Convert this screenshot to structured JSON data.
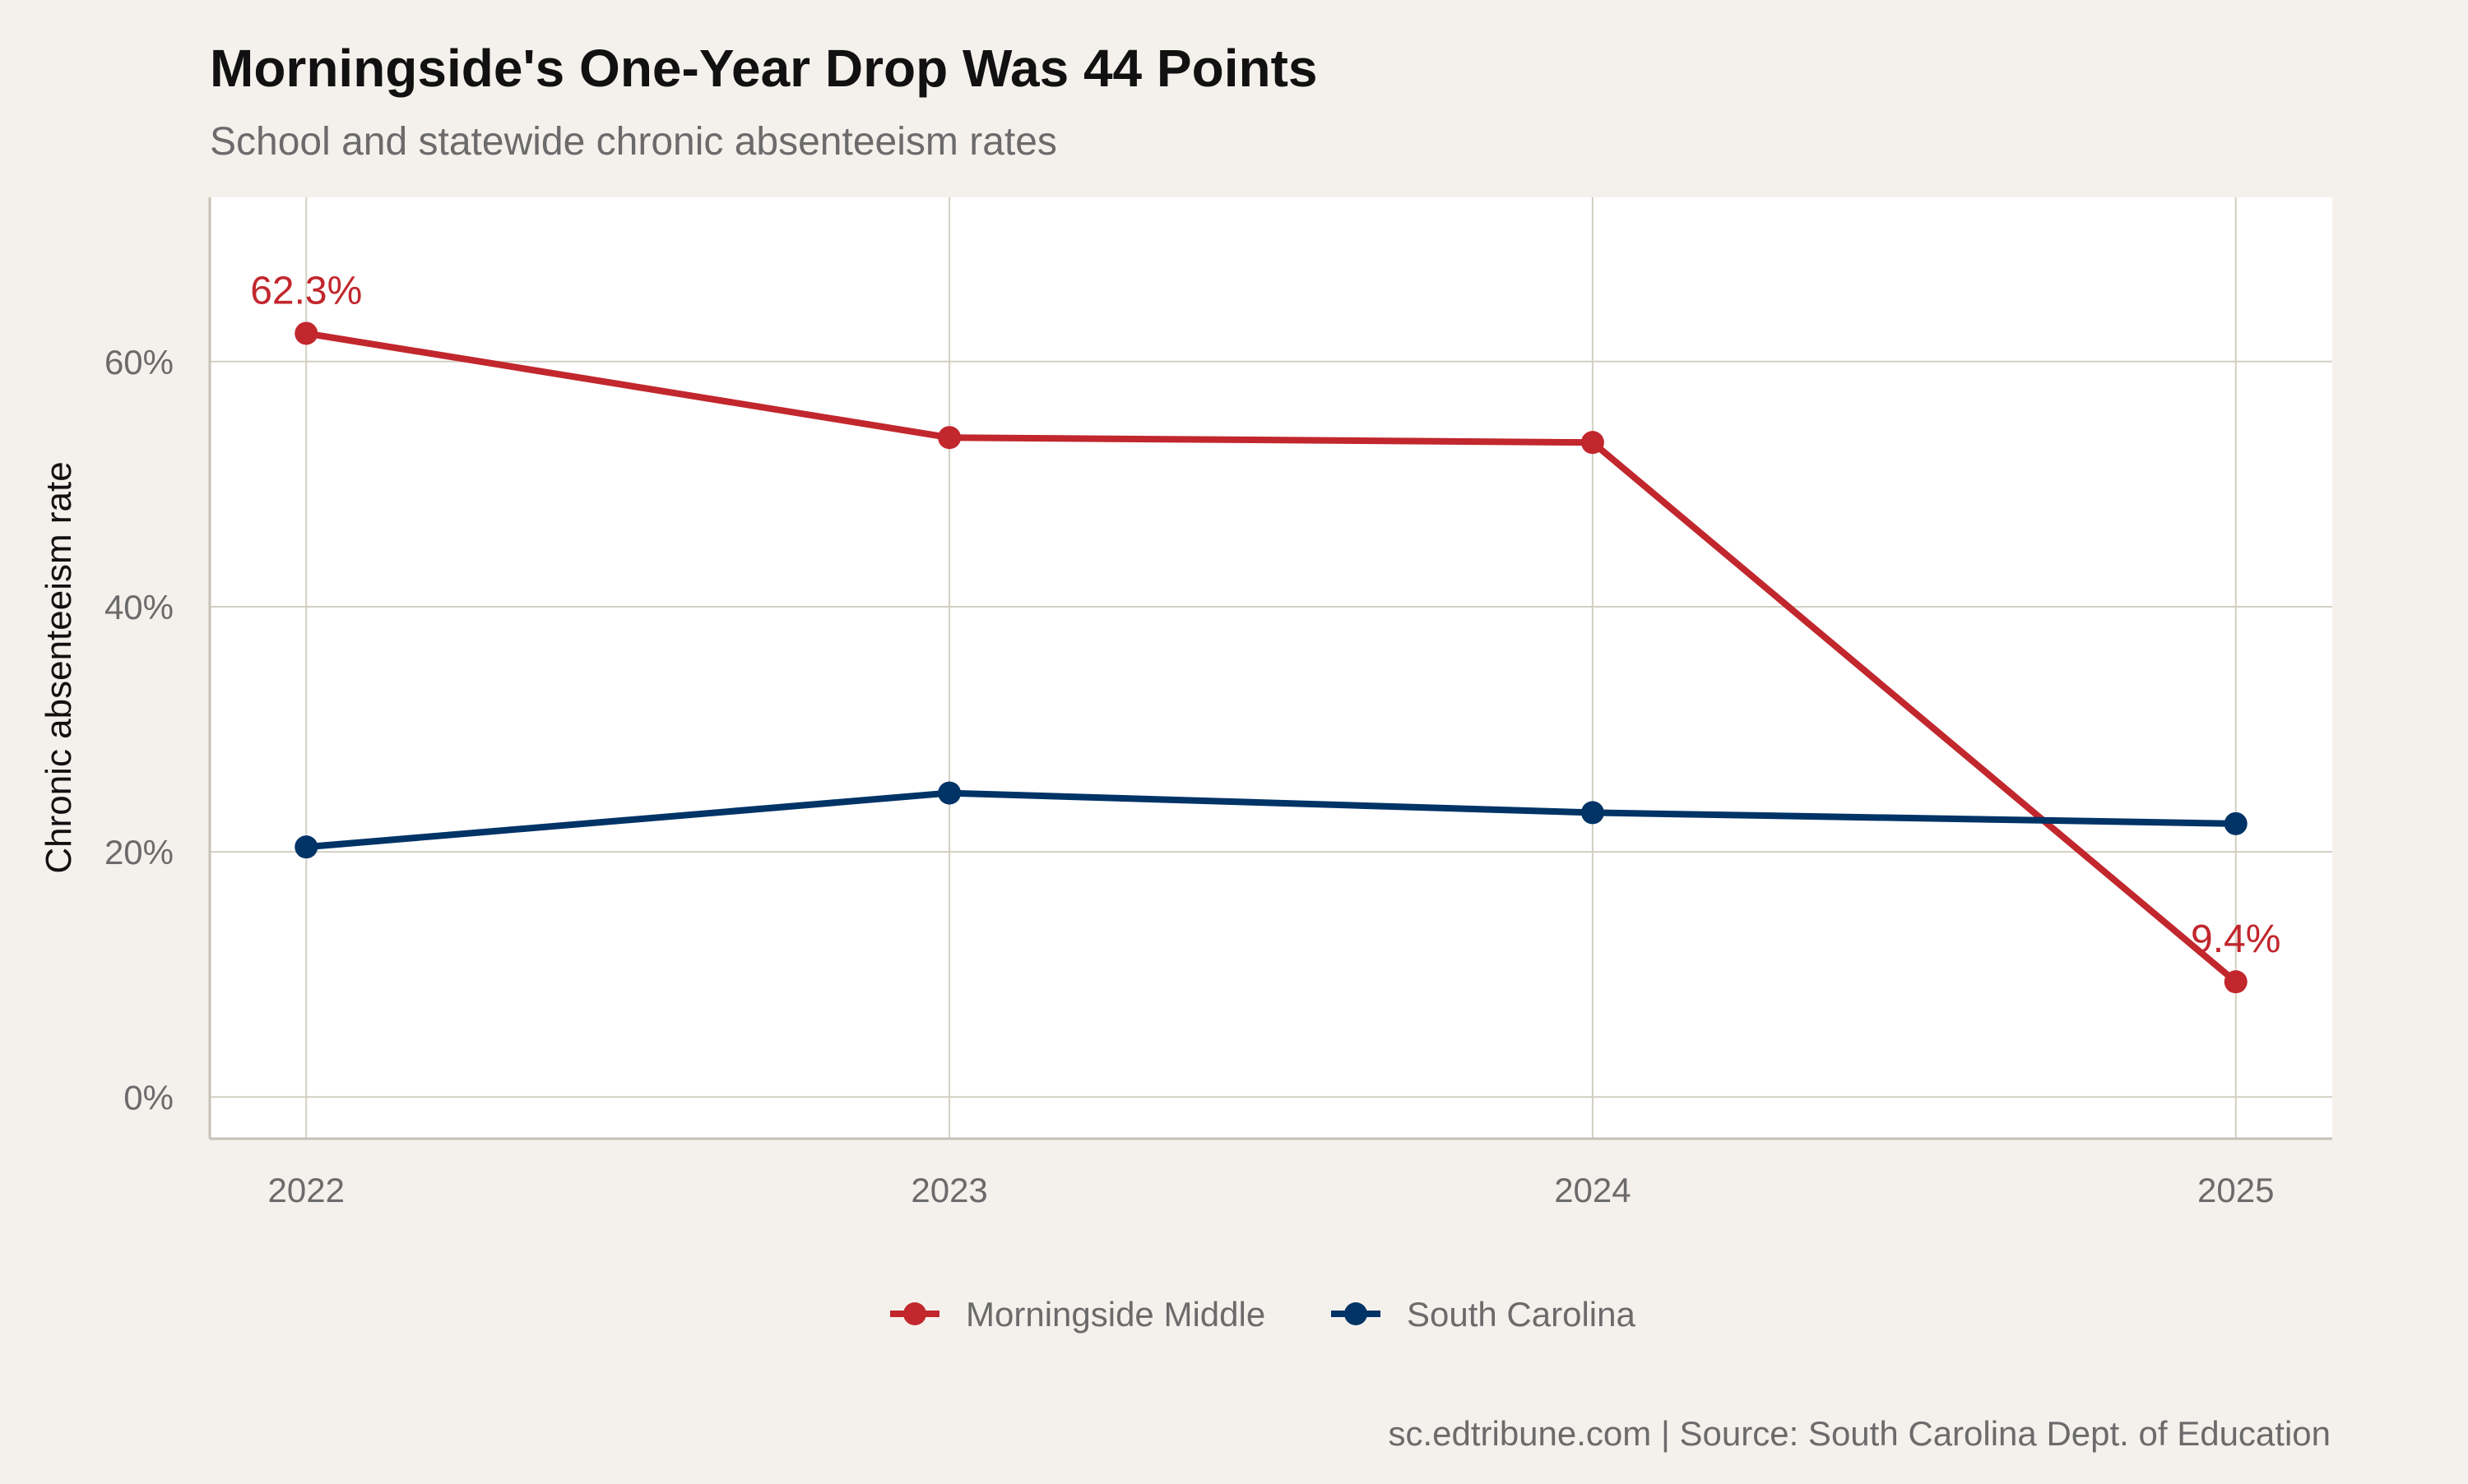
{
  "chart_data": {
    "type": "line",
    "title": "Morningside's One-Year Drop Was 44 Points",
    "subtitle": "School and statewide chronic absenteeism rates",
    "ylabel": "Chronic absenteeism rate",
    "xlabel": "",
    "x": [
      "2022",
      "2023",
      "2024",
      "2025"
    ],
    "x_ticks": [
      "2022",
      "2023",
      "2024",
      "2025"
    ],
    "y_ticks": [
      "0%",
      "20%",
      "40%",
      "60%"
    ],
    "y_tick_values": [
      0,
      20,
      40,
      60
    ],
    "ylim": [
      -3.4,
      73.4
    ],
    "grid": true,
    "legend_position": "bottom",
    "series": [
      {
        "name": "Morningside Middle",
        "color": "#c1272d",
        "values": [
          62.3,
          53.8,
          53.4,
          9.4
        ],
        "point_labels": [
          "62.3%",
          "",
          "",
          "9.4%"
        ]
      },
      {
        "name": "South Carolina",
        "color": "#003366",
        "values": [
          20.4,
          24.8,
          23.2,
          22.3
        ],
        "point_labels": [
          "",
          "",
          "",
          ""
        ]
      }
    ],
    "caption": "sc.edtribune.com | Source: South Carolina Dept. of Education"
  }
}
